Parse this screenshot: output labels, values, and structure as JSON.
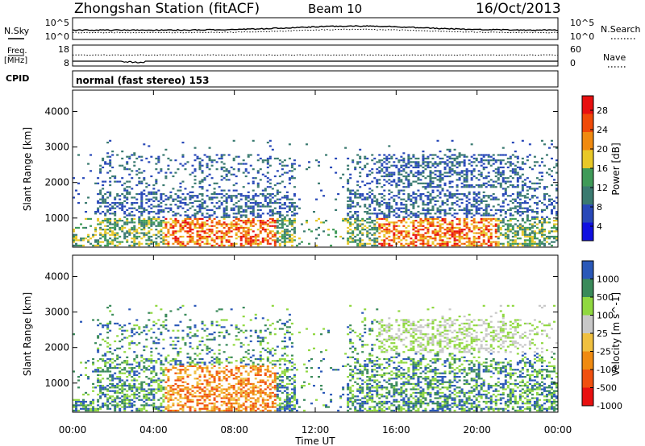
{
  "header": {
    "station": "Zhongshan Station (fitACF)",
    "beam": "Beam 10",
    "date": "16/Oct/2013"
  },
  "strip_panels": {
    "noise": {
      "label": "N.Sky",
      "right_label": "N.Search",
      "left_ticks": [
        "10^5",
        "10^0"
      ],
      "right_ticks": [
        "10^5",
        "10^0"
      ]
    },
    "frequency": {
      "label_top": "Freq.",
      "label_bottom": "[MHz]",
      "left_ticks": [
        "18",
        "8"
      ],
      "right_ticks": [
        "60",
        "0"
      ],
      "right_label": "Nave"
    },
    "cpid": {
      "label": "CPID",
      "text": "normal (fast stereo) 153"
    }
  },
  "colors": {
    "power_scale": [
      "#1010e0",
      "#2848b8",
      "#3a7a70",
      "#3f9a58",
      "#e8c828",
      "#f08a10",
      "#f04a08",
      "#e81010"
    ],
    "velocity_scale": [
      "#e81010",
      "#f05010",
      "#f08a10",
      "#f0c040",
      "#c8c8c8",
      "#90d840",
      "#3a8a5a",
      "#2a58b8"
    ]
  },
  "chart_data": [
    {
      "type": "heatmap",
      "name": "power",
      "ylabel": "Slant Range [km]",
      "y_ticks": [
        1000,
        2000,
        3000,
        4000
      ],
      "ylim": [
        180,
        4600
      ],
      "x_ticks": [
        "00:00",
        "04:00",
        "08:00",
        "12:00",
        "16:00",
        "20:00",
        "00:00"
      ],
      "colorbar": {
        "label": "Power [dB]",
        "ticks": [
          "28",
          "24",
          "20",
          "16",
          "12",
          "8",
          "4"
        ],
        "range": [
          0,
          30
        ]
      }
    },
    {
      "type": "heatmap",
      "name": "velocity",
      "ylabel": "Slant Range [km]",
      "y_ticks": [
        1000,
        2000,
        3000,
        4000
      ],
      "ylim": [
        180,
        4600
      ],
      "x_ticks": [
        "00:00",
        "04:00",
        "08:00",
        "12:00",
        "16:00",
        "20:00",
        "00:00"
      ],
      "xlabel": "Time UT",
      "colorbar": {
        "label": "Velocity [m s^-1]",
        "ticks": [
          "1000",
          "500",
          "100",
          "25",
          "-25",
          "-100",
          "-500",
          "-1000"
        ]
      }
    }
  ]
}
